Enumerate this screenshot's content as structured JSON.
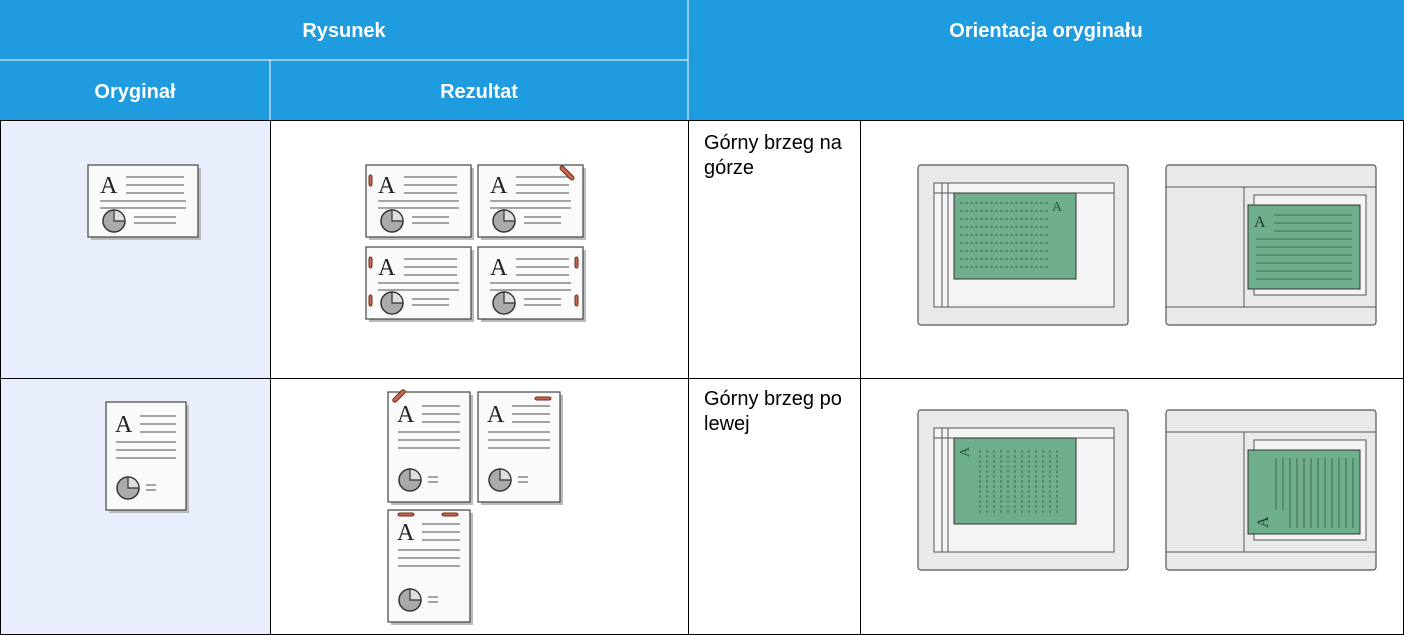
{
  "header": {
    "drawing": "Rysunek",
    "orientation": "Orientacja oryginału",
    "original": "Oryginał",
    "result": "Rezultat"
  },
  "rows": [
    {
      "orientation": "Górny brzeg na górze"
    },
    {
      "orientation": "Górny brzeg po lewej"
    }
  ],
  "glyph": "A"
}
